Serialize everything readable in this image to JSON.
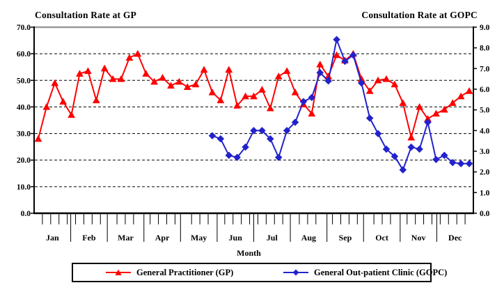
{
  "titles": {
    "left": "Consultation Rate at GP",
    "right": "Consultation Rate at GOPC"
  },
  "legend": {
    "items": [
      {
        "label": "General Practitioner (GP)",
        "color": "#FF0000",
        "marker": "triangle"
      },
      {
        "label": "General Out-patient Clinic (GOPC)",
        "color": "#2222CC",
        "marker": "diamond"
      }
    ]
  },
  "chart_data": {
    "type": "line",
    "x_axis": {
      "label": "Month",
      "months": [
        "Jan",
        "Feb",
        "Mar",
        "Apr",
        "May",
        "Jun",
        "Jul",
        "Aug",
        "Sep",
        "Oct",
        "Nov",
        "Dec"
      ],
      "unit": "week",
      "weeks_total": 53
    },
    "y_left": {
      "title": "Consultation Rate at GP",
      "min": 0,
      "max": 70,
      "step": 10,
      "tick_labels": [
        "0.0",
        "10.0",
        "20.0",
        "30.0",
        "40.0",
        "50.0",
        "60.0",
        "70.0"
      ]
    },
    "y_right": {
      "title": "Consultation Rate at GOPC",
      "min": 0,
      "max": 9,
      "step": 1,
      "tick_labels": [
        "0.0",
        "1.0",
        "2.0",
        "3.0",
        "4.0",
        "5.0",
        "6.0",
        "7.0",
        "8.0",
        "9.0"
      ]
    },
    "grid": "horizontal-dashed",
    "legend_position": "bottom",
    "series": [
      {
        "name": "General Practitioner (GP)",
        "axis": "left",
        "color": "#FF0000",
        "marker": "triangle",
        "start_week": 1,
        "values": [
          28,
          40,
          49,
          42,
          37,
          52.5,
          53.5,
          42.5,
          54.5,
          50.5,
          50.5,
          58.5,
          60,
          52.5,
          49.5,
          51,
          48,
          49.5,
          47.5,
          48.5,
          54,
          45.5,
          42.5,
          54,
          40.5,
          44,
          44,
          46.5,
          39.5,
          51.5,
          53.5,
          45.5,
          41,
          37.5,
          56,
          51.5,
          59.5,
          57.5,
          60,
          50.5,
          46,
          50,
          50.5,
          48.5,
          41.5,
          28.5,
          40,
          35.5,
          37.5,
          39,
          41.5,
          44,
          46
        ]
      },
      {
        "name": "General Out-patient Clinic (GOPC)",
        "axis": "right",
        "color": "#2222CC",
        "marker": "diamond",
        "start_week": 22,
        "values": [
          3.75,
          3.6,
          2.8,
          2.7,
          3.2,
          4.0,
          4.0,
          3.6,
          2.7,
          4.0,
          4.4,
          5.4,
          5.6,
          6.8,
          6.4,
          8.4,
          7.35,
          7.65,
          6.3,
          4.6,
          3.85,
          3.1,
          2.75,
          2.1,
          3.2,
          3.1,
          4.4,
          2.6,
          2.8,
          2.45,
          2.4,
          2.4
        ]
      }
    ]
  }
}
